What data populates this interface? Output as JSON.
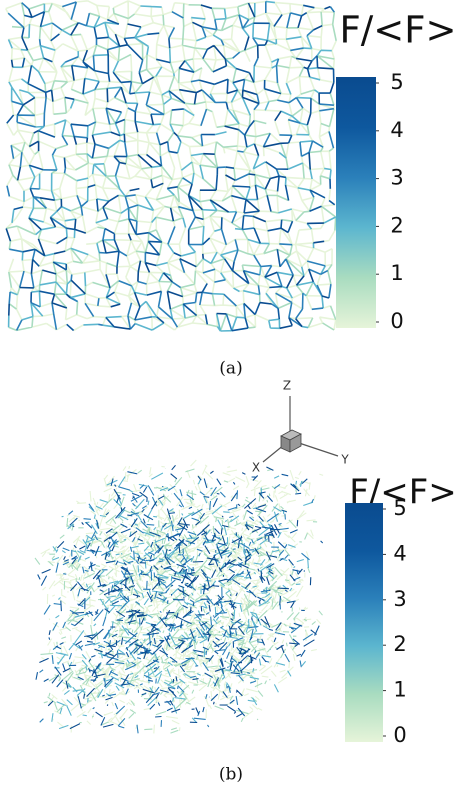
{
  "panels": [
    {
      "caption": "(a)",
      "colorbar": {
        "title": "F/<F>",
        "lim": [
          0,
          5
        ],
        "ticks": [
          0,
          1,
          2,
          3,
          4,
          5
        ],
        "colors": [
          "#e6f4d9",
          "#a9dcc0",
          "#5cb6cf",
          "#2b80ba",
          "#0e589e",
          "#0a4b8f"
        ]
      }
    },
    {
      "caption": "(b)",
      "axes": [
        "Z",
        "X",
        "Y"
      ],
      "colorbar": {
        "title": "F/<F>",
        "lim": [
          0,
          5
        ],
        "ticks": [
          0,
          1,
          2,
          3,
          4,
          5
        ],
        "colors": [
          "#e6f4d9",
          "#a9dcc0",
          "#5cb6cf",
          "#2b80ba",
          "#0e589e",
          "#0a4b8f"
        ]
      }
    }
  ]
}
